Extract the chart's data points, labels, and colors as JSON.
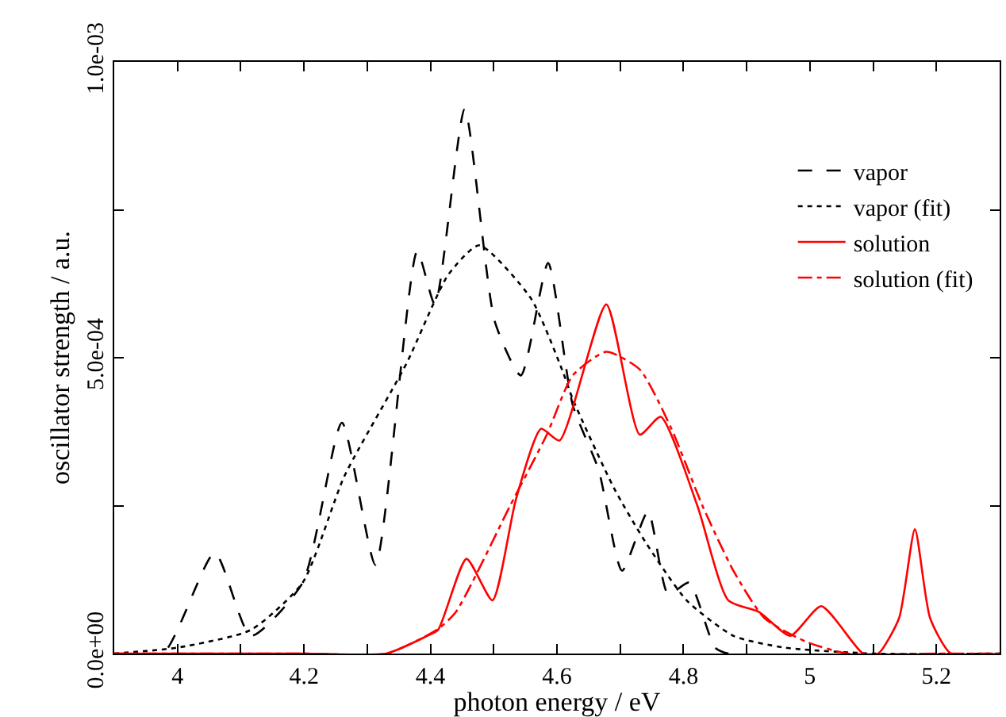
{
  "chart_data": {
    "type": "line",
    "xlabel": "photon energy / eV",
    "ylabel": "oscillator strength / a.u.",
    "xlim": [
      3.9,
      5.3
    ],
    "xticks": [
      4,
      {
        "value": 4.1,
        "label": null
      },
      4.2,
      {
        "value": 4.3,
        "label": null
      },
      4.4,
      {
        "value": 4.5,
        "label": null
      },
      4.6,
      {
        "value": 4.7,
        "label": null
      },
      4.8,
      {
        "value": 4.9,
        "label": null
      },
      5,
      {
        "value": 5.1,
        "label": null
      },
      5.2
    ],
    "ylim": [
      0,
      0.001
    ],
    "yticks": [
      {
        "value": 0,
        "label": "0.0e+00"
      },
      {
        "value": 0.00025,
        "label": null
      },
      {
        "value": 0.0005,
        "label": "5.0e-04"
      },
      {
        "value": 0.00075,
        "label": null
      },
      {
        "value": 0.001,
        "label": "1.0e-03"
      }
    ],
    "legend": "top right",
    "series": [
      {
        "name": "vapor",
        "color": "#000000",
        "line_style": "dashed",
        "x": [
          3.9,
          3.977,
          4.059,
          4.116,
          4.198,
          4.26,
          4.313,
          4.379,
          4.407,
          4.454,
          4.502,
          4.543,
          4.586,
          4.625,
          4.666,
          4.703,
          4.744,
          4.776,
          4.809,
          4.85,
          4.871,
          5.3
        ],
        "values": [
          0,
          0,
          0.00017,
          3e-05,
          0.00012,
          0.00039,
          0.00015,
          0.00068,
          0.00059,
          0.00092,
          0.00056,
          0.00047,
          0.00066,
          0.00042,
          0.00031,
          0.00014,
          0.00024,
          0.0001,
          0.00012,
          1e-05,
          0,
          0
        ]
      },
      {
        "name": "vapor (fit)",
        "color": "#000000",
        "line_style": "dotted",
        "x": [
          3.9,
          4.0,
          4.116,
          4.198,
          4.264,
          4.362,
          4.428,
          4.477,
          4.559,
          4.608,
          4.625,
          4.69,
          4.739,
          4.805,
          4.879,
          4.96,
          5.1,
          5.3
        ],
        "values": [
          0,
          1e-05,
          4e-05,
          0.00012,
          0.0003,
          0.00049,
          0.00064,
          0.00069,
          0.0006,
          0.00048,
          0.00043,
          0.00028,
          0.00019,
          9e-05,
          3e-05,
          1e-05,
          0,
          0
        ]
      },
      {
        "name": "solution",
        "color": "#ff0000",
        "line_style": "solid",
        "x": [
          3.9,
          4.2,
          4.33,
          4.395,
          4.412,
          4.457,
          4.498,
          4.535,
          4.575,
          4.604,
          4.678,
          4.731,
          4.764,
          4.822,
          4.871,
          4.92,
          4.969,
          5.018,
          5.084,
          5.108,
          5.141,
          5.166,
          5.19,
          5.223,
          5.3
        ],
        "values": [
          0,
          0,
          0,
          3e-05,
          4e-05,
          0.00016,
          9e-05,
          0.00026,
          0.00038,
          0.00036,
          0.00059,
          0.00037,
          0.0004,
          0.00025,
          9e-05,
          7e-05,
          3e-05,
          8e-05,
          0,
          0,
          6e-05,
          0.00021,
          6e-05,
          0,
          0
        ]
      },
      {
        "name": "solution (fit)",
        "color": "#ff0000",
        "line_style": "dashdot",
        "x": [
          3.9,
          4.2,
          4.33,
          4.41,
          4.44,
          4.526,
          4.584,
          4.625,
          4.678,
          4.731,
          4.781,
          4.83,
          4.879,
          4.928,
          4.994,
          5.06,
          5.2,
          5.3
        ],
        "values": [
          0,
          0,
          0,
          4e-05,
          7e-05,
          0.00025,
          0.00037,
          0.00047,
          0.00051,
          0.00048,
          0.00038,
          0.00025,
          0.00014,
          6e-05,
          2e-05,
          0,
          0,
          0
        ]
      }
    ]
  }
}
